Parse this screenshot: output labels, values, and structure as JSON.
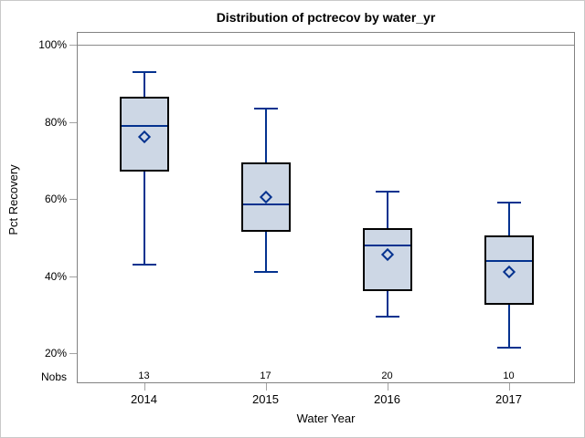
{
  "window": {
    "background": "#ffffff",
    "border_color": "#c9c9c9"
  },
  "chart_data": {
    "type": "boxplot",
    "title": "Distribution of pctrecov by water_yr",
    "xlabel": "Water Year",
    "ylabel": "Pct Recovery",
    "categories": [
      "2014",
      "2015",
      "2016",
      "2017"
    ],
    "yaxis": {
      "ticks": [
        {
          "label": "100%",
          "value": 100
        },
        {
          "label": "80%",
          "value": 80
        },
        {
          "label": "60%",
          "value": 60
        },
        {
          "label": "40%",
          "value": 40
        },
        {
          "label": "20%",
          "value": 20
        }
      ],
      "ylim": [
        20,
        100
      ],
      "top_reference_line_value": 100
    },
    "nobs_label": "Nobs",
    "nobs": [
      "13",
      "17",
      "20",
      "10"
    ],
    "series": [
      {
        "category": "2014",
        "n": 13,
        "whisker_low": 43.0,
        "q1": 67.0,
        "median": 79.0,
        "mean": 76.0,
        "q3": 86.5,
        "whisker_high": 93.0
      },
      {
        "category": "2015",
        "n": 17,
        "whisker_low": 41.0,
        "q1": 51.5,
        "median": 58.5,
        "mean": 60.5,
        "q3": 69.5,
        "whisker_high": 83.5
      },
      {
        "category": "2016",
        "n": 20,
        "whisker_low": 29.5,
        "q1": 36.0,
        "median": 48.0,
        "mean": 45.5,
        "q3": 52.5,
        "whisker_high": 62.0
      },
      {
        "category": "2017",
        "n": 10,
        "whisker_low": 21.5,
        "q1": 32.5,
        "median": 44.0,
        "mean": 41.0,
        "q3": 50.5,
        "whisker_high": 59.0
      }
    ],
    "grid": "reference line at top tick only, no other gridlines",
    "legend_position": "none",
    "colors": {
      "box_fill": "#cdd7e5",
      "box_border": "#000000",
      "whisker_median_mean": "#04328f",
      "frame": "#828282",
      "tick": "#a3a3a3",
      "text": "#000000"
    }
  }
}
